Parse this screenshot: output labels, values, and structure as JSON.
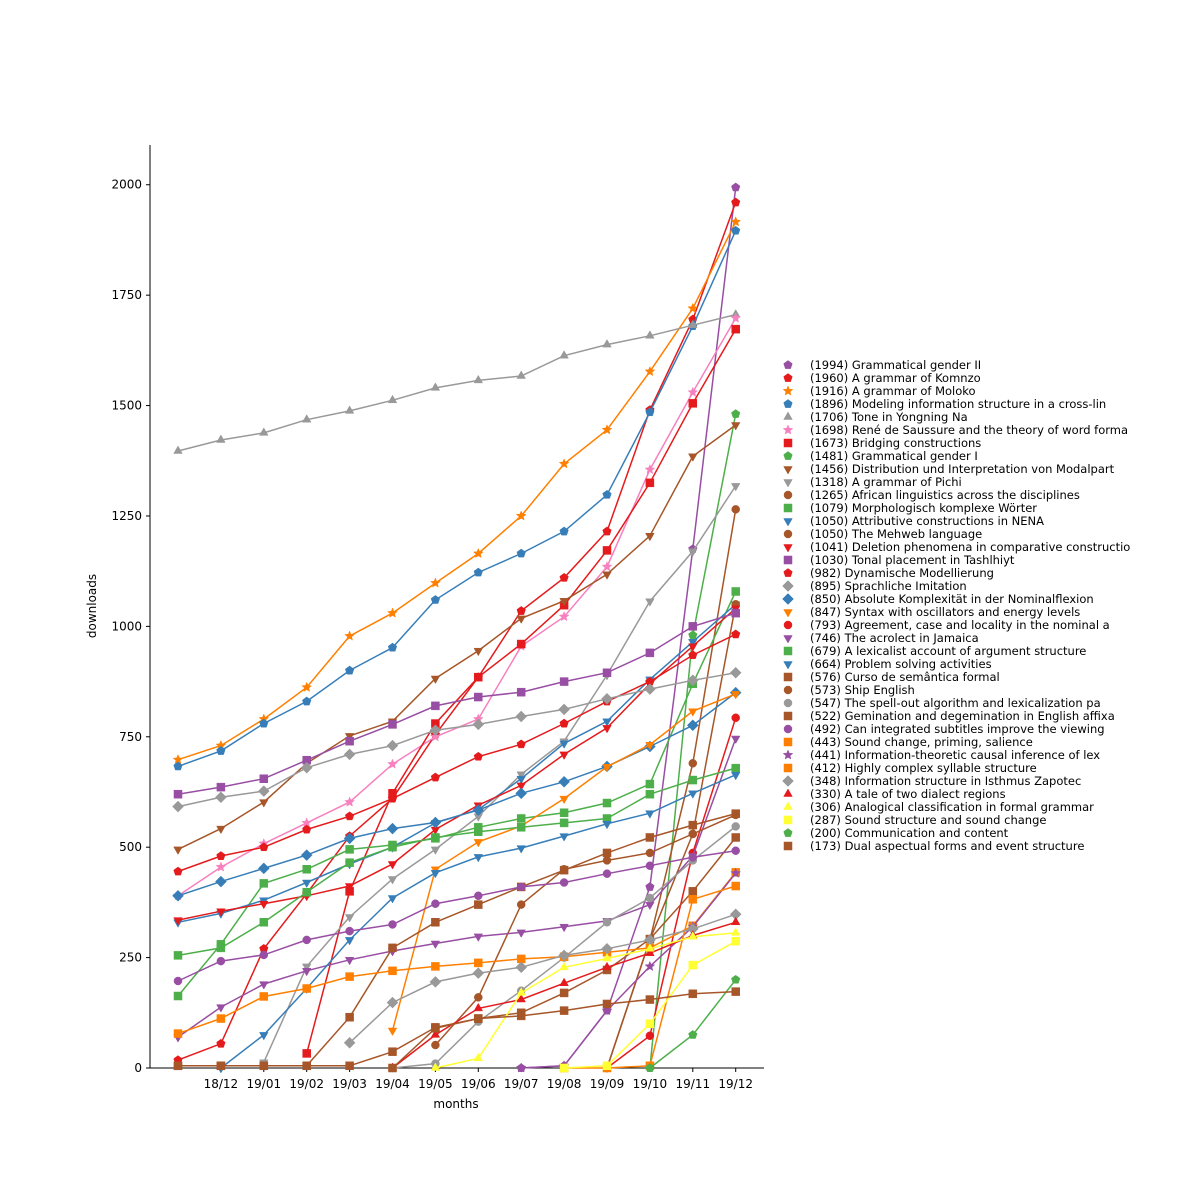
{
  "chart_data": {
    "type": "line",
    "x_label": "months",
    "y_label": "downloads",
    "categories": [
      null,
      "18/12",
      "19/01",
      "19/02",
      "19/03",
      "19/04",
      "19/05",
      "19/06",
      "19/07",
      "19/08",
      "19/09",
      "19/10",
      "19/11",
      "19/12"
    ],
    "ylim": [
      0,
      2090
    ],
    "yticks": [
      0,
      250,
      500,
      750,
      1000,
      1250,
      1500,
      1750,
      2000
    ],
    "legend": "right",
    "series": [
      {
        "name": "(1994) Grammatical gender II",
        "color": "#984ea3",
        "marker": "pentagon",
        "values": [
          null,
          null,
          null,
          null,
          null,
          null,
          null,
          null,
          0,
          5,
          130,
          410,
          1175,
          1994
        ]
      },
      {
        "name": "(1960) A grammar of Komnzo",
        "color": "#e41a1c",
        "marker": "pentagon",
        "values": [
          18,
          55,
          270,
          395,
          525,
          610,
          755,
          885,
          1035,
          1110,
          1215,
          1490,
          1695,
          1960
        ]
      },
      {
        "name": "(1916) A grammar of Moloko",
        "color": "#ff7f00",
        "marker": "star",
        "values": [
          698,
          730,
          790,
          862,
          978,
          1030,
          1098,
          1165,
          1250,
          1368,
          1445,
          1577,
          1720,
          1916
        ]
      },
      {
        "name": "(1896) Modeling information structure in a cross-lin",
        "color": "#377eb8",
        "marker": "pentagon",
        "values": [
          683,
          718,
          780,
          830,
          900,
          952,
          1060,
          1122,
          1165,
          1215,
          1298,
          1485,
          1680,
          1896
        ]
      },
      {
        "name": "(1706) Tone in Yongning Na",
        "color": "#999999",
        "marker": "triangle-up",
        "values": [
          1397,
          1422,
          1438,
          1468,
          1488,
          1512,
          1540,
          1557,
          1567,
          1613,
          1638,
          1658,
          1682,
          1706
        ]
      },
      {
        "name": "(1698) René de Saussure and the theory of word forma",
        "color": "#f781bf",
        "marker": "star",
        "values": [
          390,
          455,
          508,
          555,
          602,
          688,
          750,
          790,
          955,
          1022,
          1135,
          1355,
          1530,
          1698
        ]
      },
      {
        "name": "(1673) Bridging constructions",
        "color": "#e41a1c",
        "marker": "square",
        "values": [
          null,
          null,
          null,
          33,
          400,
          622,
          780,
          885,
          960,
          1048,
          1172,
          1325,
          1505,
          1673
        ]
      },
      {
        "name": "(1481) Grammatical gender I",
        "color": "#4daf4a",
        "marker": "pentagon",
        "values": [
          null,
          null,
          null,
          null,
          null,
          null,
          null,
          null,
          null,
          null,
          null,
          0,
          980,
          1481
        ]
      },
      {
        "name": "(1456) Distribution und Interpretation von Modalpart",
        "color": "#a65628",
        "marker": "triangle-down",
        "values": [
          495,
          542,
          602,
          690,
          752,
          785,
          882,
          945,
          1018,
          1058,
          1118,
          1205,
          1385,
          1456
        ]
      },
      {
        "name": "(1318) A grammar of Pichi",
        "color": "#999999",
        "marker": "triangle-down",
        "values": [
          null,
          null,
          13,
          230,
          342,
          428,
          495,
          570,
          665,
          740,
          890,
          1057,
          1170,
          1318
        ]
      },
      {
        "name": "(1265) African linguistics across the disciplines",
        "color": "#a65628",
        "marker": "circle",
        "values": [
          null,
          null,
          null,
          null,
          null,
          null,
          null,
          null,
          null,
          null,
          0,
          290,
          690,
          1265
        ]
      },
      {
        "name": "(1079) Morphologisch komplexe Wörter",
        "color": "#4daf4a",
        "marker": "square",
        "values": [
          163,
          280,
          418,
          450,
          495,
          505,
          520,
          545,
          565,
          578,
          600,
          643,
          870,
          1079
        ]
      },
      {
        "name": "(1050) Attributive constructions in NENA",
        "color": "#377eb8",
        "marker": "triangle-down",
        "values": [
          330,
          350,
          380,
          420,
          462,
          500,
          555,
          585,
          655,
          735,
          785,
          880,
          965,
          1050
        ]
      },
      {
        "name": "(1050) The Mehweb language",
        "color": "#a65628",
        "marker": "circle",
        "values": [
          null,
          null,
          null,
          null,
          null,
          null,
          52,
          160,
          370,
          450,
          470,
          487,
          530,
          1050
        ]
      },
      {
        "name": "(1041) Deletion phenomena in comparative constructio",
        "color": "#e41a1c",
        "marker": "triangle-down",
        "values": [
          335,
          355,
          372,
          390,
          412,
          462,
          540,
          595,
          640,
          710,
          770,
          870,
          955,
          1041
        ]
      },
      {
        "name": "(1030) Tonal placement in Tashlhiyt",
        "color": "#984ea3",
        "marker": "square",
        "values": [
          620,
          636,
          655,
          697,
          740,
          778,
          820,
          840,
          851,
          875,
          895,
          940,
          1000,
          1030
        ]
      },
      {
        "name": "(982) Dynamische Modellierung",
        "color": "#e41a1c",
        "marker": "pentagon",
        "values": [
          445,
          480,
          500,
          540,
          570,
          610,
          658,
          705,
          733,
          780,
          830,
          875,
          935,
          982
        ]
      },
      {
        "name": "(895) Sprachliche Imitation",
        "color": "#999999",
        "marker": "diamond",
        "values": [
          592,
          613,
          627,
          680,
          710,
          730,
          765,
          778,
          796,
          812,
          836,
          858,
          878,
          895
        ]
      },
      {
        "name": "(850) Absolute Komplexität in der Nominalflexion",
        "color": "#377eb8",
        "marker": "diamond",
        "values": [
          390,
          422,
          452,
          482,
          520,
          542,
          556,
          584,
          622,
          648,
          683,
          728,
          776,
          850
        ]
      },
      {
        "name": "(847) Syntax with oscillators and energy levels",
        "color": "#ff7f00",
        "marker": "triangle-down",
        "values": [
          null,
          null,
          null,
          null,
          null,
          85,
          450,
          512,
          548,
          610,
          682,
          732,
          808,
          847
        ]
      },
      {
        "name": "(793) Agreement, case and locality in the nominal a",
        "color": "#e41a1c",
        "marker": "circle",
        "values": [
          null,
          null,
          null,
          null,
          null,
          null,
          null,
          null,
          null,
          null,
          0,
          73,
          487,
          793
        ]
      },
      {
        "name": "(746) The acrolect in Jamaica",
        "color": "#984ea3",
        "marker": "triangle-down",
        "values": [
          70,
          138,
          190,
          220,
          245,
          265,
          282,
          298,
          307,
          320,
          333,
          370,
          480,
          746
        ]
      },
      {
        "name": "(679) A lexicalist account of argument structure",
        "color": "#4daf4a",
        "marker": "square",
        "values": [
          255,
          272,
          330,
          398,
          465,
          500,
          522,
          535,
          545,
          555,
          565,
          620,
          652,
          679
        ]
      },
      {
        "name": "(664) Problem solving activities",
        "color": "#377eb8",
        "marker": "triangle-down",
        "values": [
          null,
          0,
          75,
          180,
          290,
          385,
          442,
          478,
          498,
          525,
          553,
          577,
          622,
          664
        ]
      },
      {
        "name": "(576) Curso de semântica formal",
        "color": "#a65628",
        "marker": "square",
        "values": [
          5,
          5,
          5,
          5,
          115,
          272,
          330,
          370,
          410,
          448,
          487,
          522,
          550,
          576
        ]
      },
      {
        "name": "(573) Ship English",
        "color": "#a65628",
        "marker": "circle",
        "values": [
          null,
          null,
          null,
          null,
          null,
          null,
          null,
          null,
          null,
          null,
          0,
          290,
          530,
          573
        ]
      },
      {
        "name": "(547) The spell-out algorithm and lexicalization pa",
        "color": "#999999",
        "marker": "circle",
        "values": [
          null,
          null,
          null,
          null,
          null,
          0,
          10,
          105,
          175,
          250,
          330,
          385,
          470,
          547
        ]
      },
      {
        "name": "(522) Gemination and degemination in English affixa",
        "color": "#a65628",
        "marker": "square",
        "values": [
          5,
          5,
          5,
          5,
          5,
          37,
          92,
          112,
          125,
          170,
          222,
          292,
          400,
          522
        ]
      },
      {
        "name": "(492) Can integrated subtitles improve the viewing",
        "color": "#984ea3",
        "marker": "circle",
        "values": [
          197,
          242,
          256,
          290,
          310,
          325,
          372,
          390,
          410,
          420,
          440,
          458,
          477,
          492
        ]
      },
      {
        "name": "(443) Sound change, priming, salience",
        "color": "#ff7f00",
        "marker": "square",
        "values": [
          78,
          112,
          162,
          180,
          207,
          220,
          230,
          238,
          247,
          252,
          262,
          272,
          322,
          443
        ]
      },
      {
        "name": "(441) Information-theoretic causal inference of lex",
        "color": "#984ea3",
        "marker": "star",
        "values": [
          null,
          null,
          null,
          null,
          null,
          null,
          null,
          null,
          0,
          5,
          130,
          230,
          320,
          441
        ]
      },
      {
        "name": "(412) Highly complex syllable structure",
        "color": "#ff7f00",
        "marker": "square",
        "values": [
          null,
          null,
          null,
          null,
          null,
          null,
          null,
          null,
          null,
          0,
          0,
          5,
          382,
          412
        ]
      },
      {
        "name": "(348) Information structure in Isthmus Zapotec",
        "color": "#999999",
        "marker": "diamond",
        "values": [
          null,
          null,
          null,
          null,
          57,
          148,
          195,
          215,
          228,
          255,
          270,
          290,
          315,
          348
        ]
      },
      {
        "name": "(330) A tale of two dialect regions",
        "color": "#e41a1c",
        "marker": "triangle-up",
        "values": [
          null,
          null,
          null,
          null,
          null,
          0,
          75,
          135,
          155,
          192,
          228,
          260,
          300,
          330
        ]
      },
      {
        "name": "(306) Analogical classification in formal grammar",
        "color": "#ffff33",
        "marker": "triangle-up",
        "values": [
          null,
          null,
          null,
          null,
          null,
          null,
          0,
          22,
          170,
          228,
          248,
          270,
          297,
          306
        ]
      },
      {
        "name": "(287) Sound structure and sound change",
        "color": "#ffff33",
        "marker": "square",
        "values": [
          null,
          null,
          null,
          null,
          null,
          null,
          null,
          null,
          null,
          0,
          5,
          100,
          233,
          287
        ]
      },
      {
        "name": "(200) Communication and content",
        "color": "#4daf4a",
        "marker": "pentagon",
        "values": [
          null,
          null,
          null,
          null,
          null,
          null,
          null,
          null,
          null,
          null,
          null,
          0,
          75,
          200
        ]
      },
      {
        "name": "(173) Dual aspectual forms and event structure",
        "color": "#a65628",
        "marker": "square",
        "values": [
          null,
          null,
          null,
          null,
          null,
          0,
          90,
          112,
          118,
          130,
          145,
          155,
          168,
          173
        ]
      }
    ]
  }
}
